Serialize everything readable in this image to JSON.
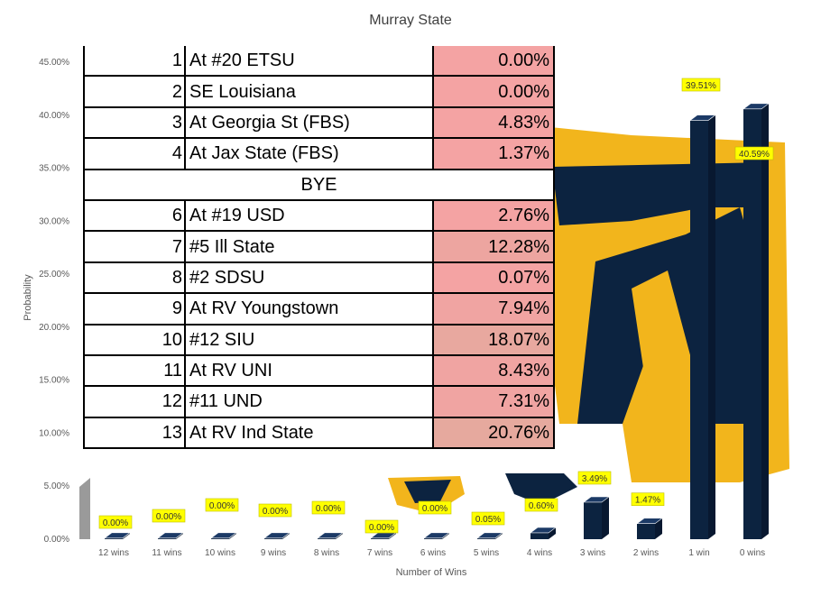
{
  "chart_data": {
    "type": "bar",
    "title": "Murray State",
    "xlabel": "Number of Wins",
    "ylabel": "Probability",
    "ylim": [
      0,
      45
    ],
    "y_ticks": [
      "0.00%",
      "5.00%",
      "10.00%",
      "15.00%",
      "20.00%",
      "25.00%",
      "30.00%",
      "35.00%",
      "40.00%",
      "45.00%"
    ],
    "categories": [
      "12 wins",
      "11 wins",
      "10 wins",
      "9 wins",
      "8 wins",
      "7 wins",
      "6 wins",
      "5 wins",
      "4 wins",
      "3 wins",
      "2 wins",
      "1 win",
      "0 wins"
    ],
    "values": [
      0.0,
      0.0,
      0.0,
      0.0,
      0.0,
      0.0,
      0.0,
      0.05,
      0.6,
      3.49,
      1.47,
      39.51,
      40.59
    ],
    "data_labels": [
      "0.00%",
      "0.00%",
      "0.00%",
      "0.00%",
      "0.00%",
      "0.00%",
      "0.00%",
      "0.05%",
      "0.60%",
      "3.49%",
      "1.47%",
      "39.51%",
      "40.59%"
    ],
    "bar_color": "#0c2340",
    "label_color": "#ffff00",
    "grid": false
  },
  "schedule": [
    {
      "num": "1",
      "opponent": "At #20 ETSU",
      "pct": "0.00%",
      "color": "#f4a3a3"
    },
    {
      "num": "2",
      "opponent": "SE Louisiana",
      "pct": "0.00%",
      "color": "#f4a3a3"
    },
    {
      "num": "3",
      "opponent": "At Georgia St (FBS)",
      "pct": "4.83%",
      "color": "#f4a3a3"
    },
    {
      "num": "4",
      "opponent": "At Jax State (FBS)",
      "pct": "1.37%",
      "color": "#f4a3a3"
    },
    {
      "bye": "BYE"
    },
    {
      "num": "6",
      "opponent": "At #19 USD",
      "pct": "2.76%",
      "color": "#f4a3a3"
    },
    {
      "num": "7",
      "opponent": "#5 Ill State",
      "pct": "12.28%",
      "color": "#eda5a0"
    },
    {
      "num": "8",
      "opponent": "#2 SDSU",
      "pct": "0.07%",
      "color": "#f4a3a3"
    },
    {
      "num": "9",
      "opponent": "At RV Youngstown",
      "pct": "7.94%",
      "color": "#f0a4a2"
    },
    {
      "num": "10",
      "opponent": "#12 SIU",
      "pct": "18.07%",
      "color": "#e8a89f"
    },
    {
      "num": "11",
      "opponent": "At RV UNI",
      "pct": "8.43%",
      "color": "#f0a4a2"
    },
    {
      "num": "12",
      "opponent": "#11 UND",
      "pct": "7.31%",
      "color": "#f0a4a2"
    },
    {
      "num": "13",
      "opponent": "At RV Ind State",
      "pct": "20.76%",
      "color": "#e6a99e"
    }
  ],
  "logo": {
    "primary": "#0c2340",
    "secondary": "#f2b51c"
  }
}
